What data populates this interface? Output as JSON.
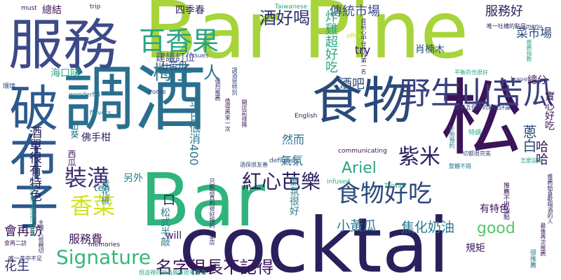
{
  "words": [
    {
      "id": "cocktail",
      "text": "cocktai",
      "color": "#2b1f5c"
    },
    {
      "id": "bar-1",
      "text": "Bar",
      "color": "#2fb47c"
    },
    {
      "id": "bar-pine",
      "text": "Bar Pine",
      "color": "#a6d43a"
    },
    {
      "id": "song",
      "text": "松",
      "color": "#3b1459"
    },
    {
      "id": "tiao-jiu",
      "text": "調酒",
      "color": "#2a6f8e"
    },
    {
      "id": "fu-wu",
      "text": "服務",
      "color": "#3d4a89"
    },
    {
      "id": "po-bu-zi",
      "text": "破布子",
      "color": "#2d5a8e"
    },
    {
      "id": "shi-wu",
      "text": "食物",
      "color": "#2a4a7a"
    },
    {
      "id": "ye-sheng",
      "text": "野生山苦瓜",
      "color": "#3a3f7c"
    },
    {
      "id": "bai-xiang-guo",
      "text": "百香果",
      "color": "#2aa484"
    },
    {
      "id": "mei-zi",
      "text": "梅子",
      "color": "#2a7a8e"
    },
    {
      "id": "jiu-hao-he",
      "text": "酒好喝",
      "color": "#2d2f6e"
    },
    {
      "id": "chuan-tong",
      "text": "傳統市場",
      "color": "#3d4a89"
    },
    {
      "id": "fu-wu-hao",
      "text": "服務好",
      "color": "#2b1f5c"
    },
    {
      "id": "cai-shi-chang",
      "text": "菜市場",
      "color": "#2a4a7a"
    },
    {
      "id": "shi-wu-hao-chi",
      "text": "食物好吃",
      "color": "#2a4a7a"
    },
    {
      "id": "zi-mi",
      "text": "紫米",
      "color": "#2b1f5c"
    },
    {
      "id": "zhuang-huang",
      "text": "裝潢",
      "color": "#3d2b6e"
    },
    {
      "id": "xiang-cai",
      "text": "香菜",
      "color": "#d2e21b"
    },
    {
      "id": "signature",
      "text": "Signature",
      "color": "#35b779"
    },
    {
      "id": "ming-zi",
      "text": "名字很長不記得",
      "color": "#3b1459"
    },
    {
      "id": "hong-xin",
      "text": "紅心芭樂",
      "color": "#2b1f5c"
    },
    {
      "id": "ren",
      "text": "人",
      "color": "#2a6f8e"
    },
    {
      "id": "ariel",
      "text": "Ariel",
      "color": "#2aa484"
    },
    {
      "id": "good",
      "text": "good",
      "color": "#54c568"
    },
    {
      "id": "xiao-huang-gua",
      "text": "小黃瓜",
      "color": "#2a7a8e"
    },
    {
      "id": "jiao-hua",
      "text": "焦化奶油",
      "color": "#2a7a8e"
    },
    {
      "id": "hui-zai-fang",
      "text": "會再訪",
      "color": "#3b1459"
    },
    {
      "id": "fu-wu-fei",
      "text": "服務費",
      "color": "#3b1459"
    },
    {
      "id": "hua-sheng",
      "text": "花生",
      "color": "#2d2f6e"
    },
    {
      "id": "you-te-se",
      "text": "有特色",
      "color": "#3b1459"
    },
    {
      "id": "gui-ju",
      "text": "規矩",
      "color": "#3b1459"
    },
    {
      "id": "ten",
      "text": "ten",
      "color": "#2a7a8e"
    },
    {
      "id": "ling-wai",
      "text": "另外",
      "color": "#2a7a8e"
    },
    {
      "id": "will",
      "text": "will",
      "color": "#3b1459"
    },
    {
      "id": "si-ji-chun",
      "text": "四季春",
      "color": "#2b1f5c"
    },
    {
      "id": "jian-yi-ding-wei",
      "text": "建議訂位",
      "color": "#3d4a89"
    },
    {
      "id": "zong-jie",
      "text": "總結",
      "color": "#3b1459"
    },
    {
      "id": "zong-fen",
      "text": "總分",
      "color": "#3b1459"
    },
    {
      "id": "must",
      "text": "must",
      "color": "#3b1459"
    },
    {
      "id": "trip",
      "text": "trip",
      "color": "#3b1459"
    },
    {
      "id": "taiwanese",
      "text": "Taiwanese",
      "color": "#2aa484"
    },
    {
      "id": "issues",
      "text": "issues",
      "color": "#3d4a89"
    },
    {
      "id": "come",
      "text": "come",
      "color": "#3d4a89"
    },
    {
      "id": "flavors",
      "text": "flavors",
      "color": "#2a7a8e"
    },
    {
      "id": "memories",
      "text": "memories",
      "color": "#3b1459"
    },
    {
      "id": "wonderful",
      "text": "wonderful",
      "color": "#2a7a8e"
    },
    {
      "id": "english",
      "text": "English",
      "color": "#2b1f5c"
    },
    {
      "id": "definitely",
      "text": "definitely",
      "color": "#2a4a7a"
    },
    {
      "id": "communicating",
      "text": "communicating",
      "color": "#3b1459"
    },
    {
      "id": "taiwan",
      "text": "Taiwan",
      "color": "#2aa484"
    },
    {
      "id": "offer",
      "text": "offer",
      "color": "#d2e21b"
    },
    {
      "id": "leave",
      "text": "leave",
      "color": "#3d4a89"
    },
    {
      "id": "try",
      "text": "try",
      "color": "#2b1f5c"
    },
    {
      "id": "infused",
      "text": "infused",
      "color": "#2aa484"
    },
    {
      "id": "hai-kou-wei",
      "text": "海口味",
      "color": "#2aa484"
    },
    {
      "id": "huan-jing",
      "text": "環境",
      "color": "#2a4a7a"
    },
    {
      "id": "qi-fen",
      "text": "氣氛",
      "color": "#2a6f8e"
    },
    {
      "id": "qi-fen-hen-hao",
      "text": "氣氛很好",
      "color": "#2a7a8e"
    },
    {
      "id": "ran-er",
      "text": "然而",
      "color": "#2a6f8e"
    },
    {
      "id": "jiu-ba",
      "text": "酒吧",
      "color": "#2a4a7a"
    },
    {
      "id": "rou-gui-mu",
      "text": "肖楠木",
      "color": "#2a4a7a"
    },
    {
      "id": "ha-ha",
      "text": "哈哈",
      "color": "#3b1459"
    },
    {
      "id": "ping-ri",
      "text": "平日低消400",
      "color": "#2a7a8e"
    },
    {
      "id": "shan-ku-gua",
      "text": "山苦瓜",
      "color": "#2a4a7a"
    },
    {
      "id": "fo-shou-gan",
      "text": "佛手柑",
      "color": "#2b1f5c"
    },
    {
      "id": "shan-kui",
      "text": "山葵",
      "color": "#2a6f8e"
    },
    {
      "id": "xi-gua",
      "text": "西瓜",
      "color": "#3b1459"
    },
    {
      "id": "qing-hua-jiao",
      "text": "青花椒",
      "color": "#2a7a8e"
    },
    {
      "id": "song-shi",
      "text": "松式半敲",
      "color": "#2a7a8e"
    },
    {
      "id": "cong-bai",
      "text": "蔥白",
      "color": "#2a4a7a"
    },
    {
      "id": "zha-ji",
      "text": "炸雞超好吃",
      "color": "#2aa484"
    },
    {
      "id": "shi-xin-fu",
      "text": "實心好吃",
      "color": "#3b1459"
    },
    {
      "id": "jiu-hen-you-te-se",
      "text": "酒單很有特色",
      "color": "#2b1f5c"
    },
    {
      "id": "kou",
      "text": "口",
      "color": "#2b1f5c"
    },
    {
      "id": "small-1",
      "text": "唯一吐槽的點是menu",
      "color": "#2b1f5c"
    },
    {
      "id": "small-2",
      "text": "目前心中台北的第一名",
      "color": "#2b1f5c"
    },
    {
      "id": "small-3",
      "text": "平衡的也很好",
      "color": "#2aa484"
    },
    {
      "id": "small-4",
      "text": "一切都很完美",
      "color": "#2a4a7a"
    },
    {
      "id": "small-5",
      "text": "只能說真的很好喝的一家店",
      "color": "#2b1f5c"
    },
    {
      "id": "small-6",
      "text": "但這裡的調酒風味很有層次",
      "color": "#2aa484"
    },
    {
      "id": "small-7",
      "text": "推薦不用怕點",
      "color": "#3b1459"
    },
    {
      "id": "small-8",
      "text": "反正來了保證不採雷",
      "color": "#2aa484"
    },
    {
      "id": "small-9",
      "text": "主理人很親切",
      "color": "#2b1f5c"
    },
    {
      "id": "small-10",
      "text": "很推薦",
      "color": "#2a7a8e"
    },
    {
      "id": "small-11",
      "text": "會再二訪",
      "color": "#3b1459"
    },
    {
      "id": "small-12",
      "text": "推薦給喜歡喝酒的人",
      "color": "#2b1f5c"
    },
    {
      "id": "small-13",
      "text": "沒有五個字的最佳評論",
      "color": "#2a4a7a"
    },
    {
      "id": "small-14",
      "text": "強烈推薦",
      "color": "#2b1f5c"
    },
    {
      "id": "small-15",
      "text": "調酒很特別",
      "color": "#2a4a7a"
    },
    {
      "id": "small-16",
      "text": "怎麼說呢",
      "color": "#2aa484"
    },
    {
      "id": "small-17",
      "text": "整體不錯",
      "color": "#2a7a8e"
    },
    {
      "id": "small-18",
      "text": "值得再來一次",
      "color": "#3b1459"
    },
    {
      "id": "small-19",
      "text": "推薦指數",
      "color": "#2aa484"
    },
    {
      "id": "small-20",
      "text": "開店前排隊",
      "color": "#3b1459"
    },
    {
      "id": "small-21",
      "text": "酒保很友善",
      "color": "#2a4a7a"
    },
    {
      "id": "small-22",
      "text": "唯一美中不足",
      "color": "#2b1f5c"
    },
    {
      "id": "small-23",
      "text": "不用預約",
      "color": "#2a7a8e"
    },
    {
      "id": "small-24",
      "text": "最後再次推薦",
      "color": "#3b1459"
    },
    {
      "id": "small-25",
      "text": "特調",
      "color": "#2aa484"
    }
  ]
}
